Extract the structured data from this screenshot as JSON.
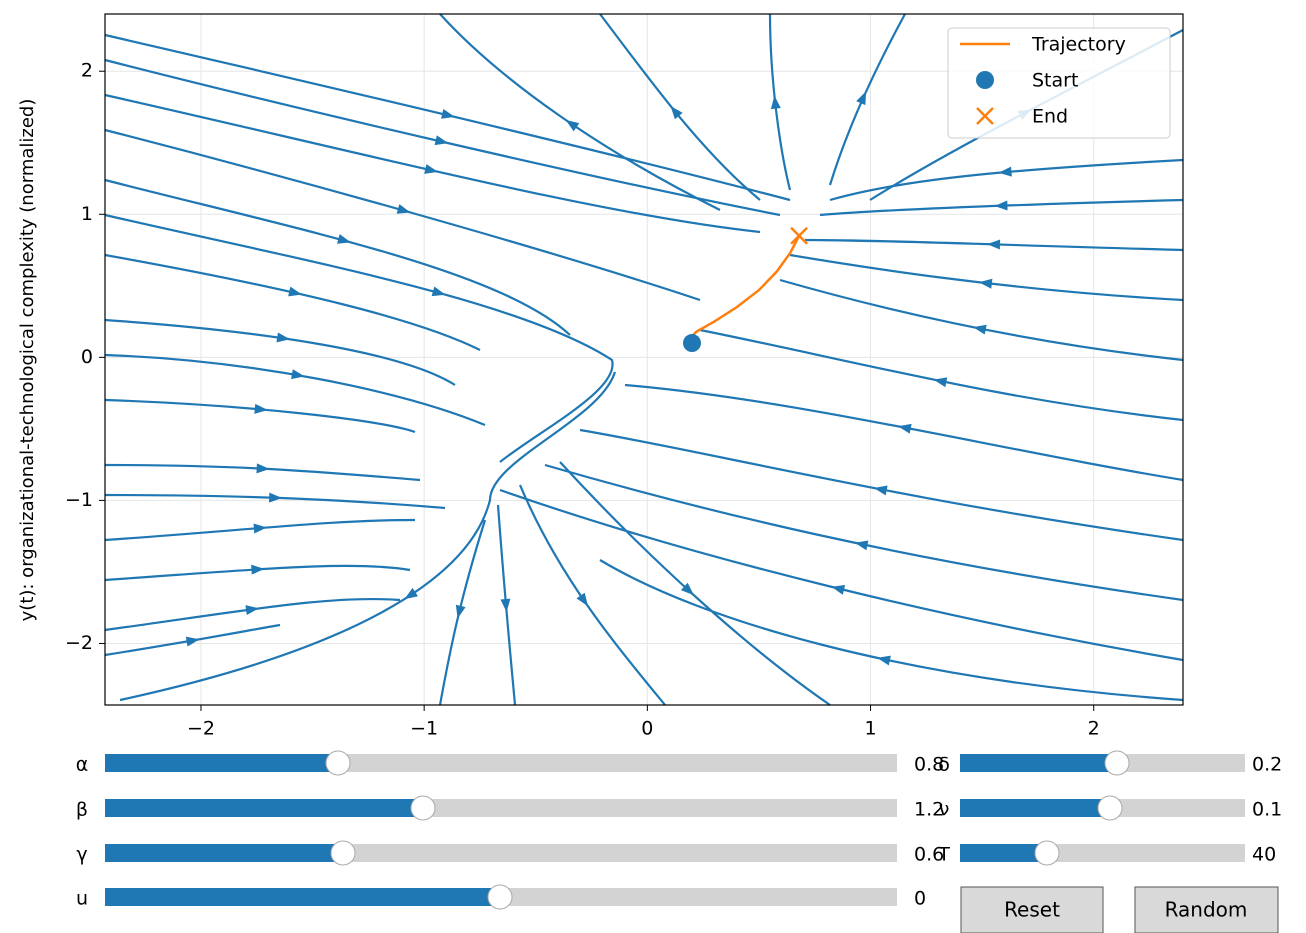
{
  "chart_data": {
    "type": "streamplot",
    "ylabel": "y(t): organizational-technological complexity (normalized)",
    "xlim": [
      -2.43,
      2.4
    ],
    "ylim": [
      -2.43,
      2.4
    ],
    "xticks": [
      {
        "value": -2,
        "label": "−2"
      },
      {
        "value": -1,
        "label": "−1"
      },
      0,
      1,
      2
    ],
    "yticks": [
      {
        "value": -2,
        "label": "−2"
      },
      {
        "value": -1,
        "label": "−1"
      },
      0,
      1,
      2
    ],
    "grid": true,
    "stream_color": "#1f77b4",
    "legend": "upper right",
    "series": [
      {
        "name": "Trajectory",
        "color": "#ff7f0e",
        "x": [
          0.19,
          0.22,
          0.3,
          0.4,
          0.5,
          0.58,
          0.64,
          0.68
        ],
        "y": [
          0.13,
          0.18,
          0.25,
          0.35,
          0.47,
          0.6,
          0.73,
          0.85
        ]
      }
    ],
    "start": {
      "name": "Start",
      "color": "#1f77b4",
      "x": 0.2,
      "y": 0.1
    },
    "end": {
      "name": "End",
      "color": "#ff7f0e",
      "x": 0.68,
      "y": 0.85
    }
  },
  "sliders": [
    {
      "label": "α",
      "value": 0.8
    },
    {
      "label": "β",
      "value": 1.2
    },
    {
      "label": "γ",
      "value": 0.6
    },
    {
      "label": "u",
      "value": 0
    },
    {
      "label": "δ",
      "value": 0.2
    },
    {
      "label": "ν",
      "value": 0.1
    },
    {
      "label": "T",
      "value": 40
    }
  ],
  "buttons": [
    "Reset",
    "Random"
  ]
}
